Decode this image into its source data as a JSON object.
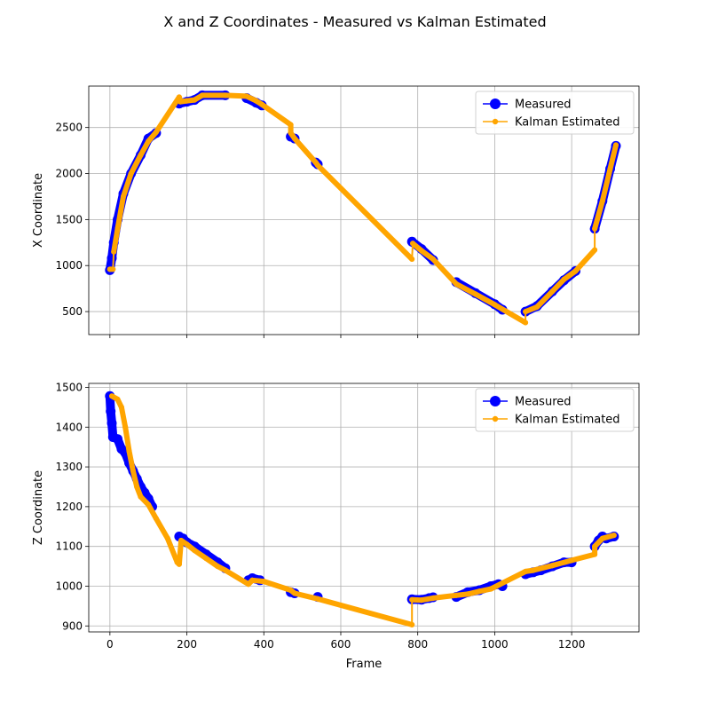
{
  "figure": {
    "title": "X and Z Coordinates - Measured vs Kalman Estimated",
    "colors": {
      "measured": "#0000ff",
      "kalman": "#ffa500",
      "grid": "#b0b0b0"
    }
  },
  "chart_data": [
    {
      "type": "line",
      "title": "",
      "xlabel": "",
      "ylabel": "X Coordinate",
      "xlim": [
        -55,
        1375
      ],
      "ylim": [
        250,
        2950
      ],
      "xticks": [
        0,
        200,
        400,
        600,
        800,
        1000,
        1200
      ],
      "yticks": [
        500,
        1000,
        1500,
        2000,
        2500
      ],
      "grid": true,
      "legend_position": "upper-right",
      "series": [
        {
          "name": "Measured",
          "style": "markers",
          "segments": [
            [
              [
                0,
                950
              ],
              [
                5,
                1080
              ],
              [
                10,
                1250
              ],
              [
                20,
                1500
              ],
              [
                35,
                1780
              ],
              [
                55,
                2000
              ],
              [
                80,
                2200
              ],
              [
                100,
                2380
              ],
              [
                120,
                2440
              ]
            ],
            [
              [
                180,
                2760
              ],
              [
                200,
                2780
              ],
              [
                220,
                2800
              ],
              [
                240,
                2850
              ],
              [
                300,
                2850
              ]
            ],
            [
              [
                355,
                2820
              ],
              [
                380,
                2770
              ],
              [
                395,
                2740
              ]
            ],
            [
              [
                470,
                2400
              ],
              [
                480,
                2380
              ]
            ],
            [
              [
                535,
                2120
              ],
              [
                540,
                2100
              ]
            ],
            [
              [
                785,
                1260
              ],
              [
                810,
                1180
              ],
              [
                840,
                1060
              ]
            ],
            [
              [
                900,
                820
              ],
              [
                950,
                700
              ],
              [
                1000,
                580
              ],
              [
                1020,
                520
              ]
            ],
            [
              [
                1080,
                500
              ],
              [
                1110,
                560
              ],
              [
                1150,
                720
              ],
              [
                1180,
                840
              ],
              [
                1210,
                940
              ]
            ],
            [
              [
                1260,
                1400
              ],
              [
                1280,
                1700
              ],
              [
                1300,
                2050
              ],
              [
                1315,
                2300
              ]
            ]
          ]
        },
        {
          "name": "Kalman Estimated",
          "style": "line",
          "points": [
            [
              0,
              960
            ],
            [
              8,
              960
            ],
            [
              10,
              1150
            ],
            [
              20,
              1400
            ],
            [
              35,
              1750
            ],
            [
              55,
              2000
            ],
            [
              80,
              2200
            ],
            [
              100,
              2350
            ],
            [
              120,
              2450
            ],
            [
              180,
              2830
            ],
            [
              183,
              2780
            ],
            [
              200,
              2790
            ],
            [
              220,
              2800
            ],
            [
              240,
              2850
            ],
            [
              300,
              2850
            ],
            [
              355,
              2840
            ],
            [
              380,
              2790
            ],
            [
              395,
              2750
            ],
            [
              470,
              2530
            ],
            [
              470,
              2440
            ],
            [
              480,
              2380
            ],
            [
              535,
              2120
            ],
            [
              540,
              2090
            ],
            [
              785,
              1070
            ],
            [
              787,
              1240
            ],
            [
              810,
              1160
            ],
            [
              840,
              1070
            ],
            [
              900,
              800
            ],
            [
              950,
              690
            ],
            [
              1000,
              575
            ],
            [
              1080,
              380
            ],
            [
              1080,
              500
            ],
            [
              1110,
              550
            ],
            [
              1150,
              720
            ],
            [
              1180,
              850
            ],
            [
              1210,
              940
            ],
            [
              1260,
              1170
            ],
            [
              1260,
              1400
            ],
            [
              1280,
              1700
            ],
            [
              1300,
              2050
            ],
            [
              1315,
              2310
            ]
          ]
        }
      ]
    },
    {
      "type": "line",
      "title": "",
      "xlabel": "Frame",
      "ylabel": "Z Coordinate",
      "xlim": [
        -55,
        1375
      ],
      "ylim": [
        885,
        1510
      ],
      "xticks": [
        0,
        200,
        400,
        600,
        800,
        1000,
        1200
      ],
      "yticks": [
        900,
        1000,
        1100,
        1200,
        1300,
        1400,
        1500
      ],
      "grid": true,
      "legend_position": "upper-right",
      "series": [
        {
          "name": "Measured",
          "style": "markers",
          "segments": [
            [
              [
                0,
                1478
              ],
              [
                2,
                1440
              ],
              [
                5,
                1410
              ],
              [
                8,
                1375
              ],
              [
                20,
                1370
              ],
              [
                30,
                1345
              ],
              [
                40,
                1335
              ],
              [
                50,
                1310
              ],
              [
                60,
                1290
              ],
              [
                70,
                1270
              ],
              [
                80,
                1250
              ],
              [
                90,
                1235
              ],
              [
                100,
                1220
              ],
              [
                110,
                1200
              ]
            ],
            [
              [
                180,
                1125
              ],
              [
                190,
                1120
              ],
              [
                200,
                1110
              ],
              [
                220,
                1100
              ],
              [
                250,
                1080
              ],
              [
                280,
                1060
              ],
              [
                300,
                1045
              ]
            ],
            [
              [
                360,
                1015
              ],
              [
                370,
                1020
              ],
              [
                390,
                1015
              ]
            ],
            [
              [
                470,
                985
              ],
              [
                480,
                982
              ]
            ],
            [
              [
                540,
                973
              ]
            ],
            [
              [
                785,
                967
              ],
              [
                810,
                966
              ],
              [
                830,
                970
              ],
              [
                840,
                972
              ]
            ],
            [
              [
                900,
                973
              ],
              [
                930,
                985
              ],
              [
                960,
                990
              ],
              [
                990,
                1000
              ],
              [
                1010,
                1005
              ],
              [
                1020,
                1000
              ]
            ],
            [
              [
                1080,
                1030
              ],
              [
                1100,
                1035
              ],
              [
                1120,
                1040
              ],
              [
                1150,
                1050
              ],
              [
                1180,
                1060
              ],
              [
                1200,
                1060
              ]
            ],
            [
              [
                1260,
                1100
              ],
              [
                1270,
                1115
              ],
              [
                1280,
                1125
              ],
              [
                1290,
                1120
              ],
              [
                1310,
                1125
              ]
            ]
          ]
        },
        {
          "name": "Kalman Estimated",
          "style": "line",
          "points": [
            [
              5,
              1478
            ],
            [
              20,
              1470
            ],
            [
              30,
              1450
            ],
            [
              40,
              1400
            ],
            [
              50,
              1340
            ],
            [
              60,
              1290
            ],
            [
              70,
              1250
            ],
            [
              80,
              1225
            ],
            [
              100,
              1205
            ],
            [
              120,
              1170
            ],
            [
              150,
              1120
            ],
            [
              175,
              1060
            ],
            [
              180,
              1055
            ],
            [
              185,
              1115
            ],
            [
              200,
              1105
            ],
            [
              220,
              1090
            ],
            [
              250,
              1070
            ],
            [
              280,
              1050
            ],
            [
              300,
              1040
            ],
            [
              360,
              1005
            ],
            [
              370,
              1015
            ],
            [
              400,
              1012
            ],
            [
              470,
              990
            ],
            [
              480,
              982
            ],
            [
              540,
              968
            ],
            [
              785,
              903
            ],
            [
              785,
              966
            ],
            [
              810,
              965
            ],
            [
              840,
              970
            ],
            [
              900,
              977
            ],
            [
              930,
              980
            ],
            [
              960,
              987
            ],
            [
              990,
              993
            ],
            [
              1080,
              1037
            ],
            [
              1100,
              1040
            ],
            [
              1150,
              1052
            ],
            [
              1200,
              1065
            ],
            [
              1260,
              1080
            ],
            [
              1260,
              1100
            ],
            [
              1280,
              1120
            ],
            [
              1310,
              1128
            ]
          ]
        }
      ]
    }
  ]
}
